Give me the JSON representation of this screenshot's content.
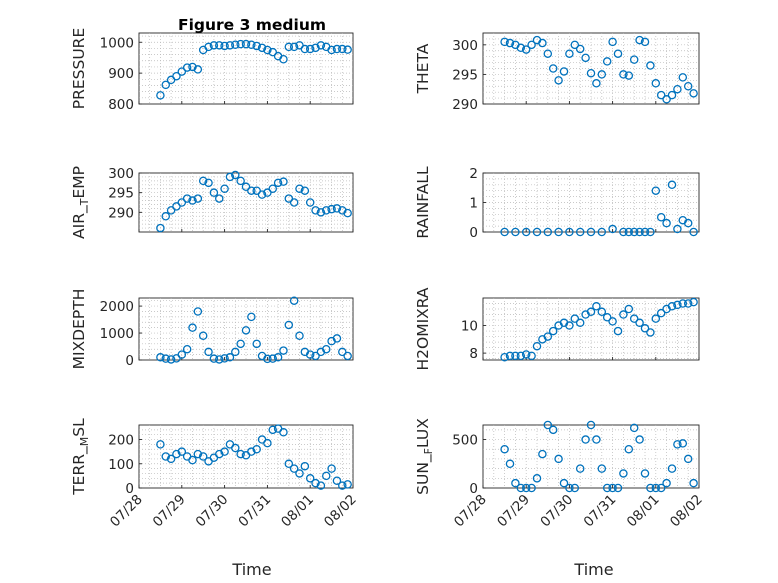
{
  "figure": {
    "title": "Figure 3 medium",
    "x_axis_label": "Time",
    "x_ticks": [
      "07/28",
      "07/29",
      "07/30",
      "07/31",
      "08/01",
      "08/02"
    ],
    "x_range": [
      "07/28",
      "08/02"
    ],
    "marker_color": "#0072BD",
    "grid": "dotted major and minor"
  },
  "chart_data": [
    {
      "type": "scatter",
      "ylabel": "PRESSURE",
      "ylim": [
        800,
        1030
      ],
      "yticks": [
        "800",
        "900",
        "1000"
      ],
      "x": [
        "07/28 12:00",
        "07/28 15:00",
        "07/28 18:00",
        "07/28 21:00",
        "07/29 00:00",
        "07/29 03:00",
        "07/29 06:00",
        "07/29 09:00",
        "07/29 12:00",
        "07/29 15:00",
        "07/29 18:00",
        "07/29 21:00",
        "07/30 00:00",
        "07/30 03:00",
        "07/30 06:00",
        "07/30 09:00",
        "07/30 12:00",
        "07/30 15:00",
        "07/30 18:00",
        "07/30 21:00",
        "07/31 00:00",
        "07/31 03:00",
        "07/31 06:00",
        "07/31 09:00",
        "07/31 12:00",
        "07/31 15:00",
        "07/31 18:00",
        "07/31 21:00",
        "08/01 00:00",
        "08/01 03:00",
        "08/01 06:00",
        "08/01 09:00",
        "08/01 12:00",
        "08/01 15:00",
        "08/01 18:00",
        "08/01 21:00"
      ],
      "y": [
        828,
        862,
        878,
        890,
        905,
        918,
        920,
        912,
        975,
        985,
        990,
        990,
        988,
        990,
        992,
        994,
        994,
        992,
        988,
        982,
        975,
        968,
        955,
        945,
        985,
        985,
        990,
        978,
        978,
        982,
        990,
        985,
        975,
        978,
        978,
        976
      ]
    },
    {
      "type": "scatter",
      "ylabel": "THETA",
      "ylim": [
        290,
        302
      ],
      "yticks": [
        "290",
        "295",
        "300"
      ],
      "x": [
        "07/28 12:00",
        "07/28 15:00",
        "07/28 18:00",
        "07/28 21:00",
        "07/29 00:00",
        "07/29 03:00",
        "07/29 06:00",
        "07/29 09:00",
        "07/29 12:00",
        "07/29 15:00",
        "07/29 18:00",
        "07/29 21:00",
        "07/30 00:00",
        "07/30 03:00",
        "07/30 06:00",
        "07/30 09:00",
        "07/30 12:00",
        "07/30 15:00",
        "07/30 18:00",
        "07/30 21:00",
        "07/31 00:00",
        "07/31 03:00",
        "07/31 06:00",
        "07/31 09:00",
        "07/31 12:00",
        "07/31 15:00",
        "07/31 18:00",
        "07/31 21:00",
        "08/01 00:00",
        "08/01 03:00",
        "08/01 06:00",
        "08/01 09:00",
        "08/01 12:00",
        "08/01 15:00",
        "08/01 18:00",
        "08/01 21:00"
      ],
      "y": [
        300.5,
        300.3,
        300.0,
        299.5,
        299.2,
        300.0,
        300.8,
        300.3,
        298.5,
        296.0,
        294.0,
        295.5,
        298.5,
        300.0,
        299.3,
        297.8,
        295.2,
        293.5,
        295.0,
        297.2,
        300.5,
        298.5,
        295.0,
        294.8,
        297.5,
        300.8,
        300.5,
        296.5,
        293.5,
        291.5,
        290.8,
        291.5,
        292.5,
        294.5,
        293.0,
        291.8
      ]
    },
    {
      "type": "scatter",
      "ylabel": "AIR_TEMP",
      "ylim": [
        285,
        300
      ],
      "yticks": [
        "290",
        "295",
        "300"
      ],
      "x": [
        "07/28 12:00",
        "07/28 15:00",
        "07/28 18:00",
        "07/28 21:00",
        "07/29 00:00",
        "07/29 03:00",
        "07/29 06:00",
        "07/29 09:00",
        "07/29 12:00",
        "07/29 15:00",
        "07/29 18:00",
        "07/29 21:00",
        "07/30 00:00",
        "07/30 03:00",
        "07/30 06:00",
        "07/30 09:00",
        "07/30 12:00",
        "07/30 15:00",
        "07/30 18:00",
        "07/30 21:00",
        "07/31 00:00",
        "07/31 03:00",
        "07/31 06:00",
        "07/31 09:00",
        "07/31 12:00",
        "07/31 15:00",
        "07/31 18:00",
        "07/31 21:00",
        "08/01 00:00",
        "08/01 03:00",
        "08/01 06:00",
        "08/01 09:00",
        "08/01 12:00",
        "08/01 15:00",
        "08/01 18:00",
        "08/01 21:00"
      ],
      "y": [
        286.0,
        289.0,
        290.5,
        291.5,
        292.5,
        293.5,
        293.0,
        293.5,
        298.0,
        297.5,
        295.0,
        293.5,
        296.0,
        299.0,
        299.5,
        298.0,
        296.5,
        295.5,
        295.5,
        294.5,
        295.0,
        296.0,
        297.5,
        297.8,
        293.5,
        292.5,
        296.0,
        295.5,
        292.5,
        290.5,
        290.0,
        290.5,
        290.8,
        291.0,
        290.5,
        289.8
      ]
    },
    {
      "type": "scatter",
      "ylabel": "RAINFALL",
      "ylim": [
        0,
        2
      ],
      "yticks": [
        "0",
        "1",
        "2"
      ],
      "x": [
        "07/28 12:00",
        "07/28 18:00",
        "07/29 00:00",
        "07/29 06:00",
        "07/29 12:00",
        "07/29 18:00",
        "07/30 00:00",
        "07/30 06:00",
        "07/30 12:00",
        "07/30 18:00",
        "07/31 00:00",
        "07/31 06:00",
        "07/31 09:00",
        "07/31 12:00",
        "07/31 15:00",
        "07/31 18:00",
        "07/31 21:00",
        "08/01 00:00",
        "08/01 03:00",
        "08/01 06:00",
        "08/01 09:00",
        "08/01 12:00",
        "08/01 15:00",
        "08/01 18:00",
        "08/01 21:00"
      ],
      "y": [
        0,
        0,
        0,
        0,
        0,
        0,
        0,
        0,
        0,
        0,
        0.1,
        0,
        0,
        0,
        0,
        0,
        0,
        1.4,
        0.5,
        0.3,
        1.6,
        0.1,
        0.4,
        0.3,
        0
      ]
    },
    {
      "type": "scatter",
      "ylabel": "MIXDEPTH",
      "ylim": [
        0,
        2300
      ],
      "yticks": [
        "0",
        "1000",
        "2000"
      ],
      "x": [
        "07/28 12:00",
        "07/28 15:00",
        "07/28 18:00",
        "07/28 21:00",
        "07/29 00:00",
        "07/29 03:00",
        "07/29 06:00",
        "07/29 09:00",
        "07/29 12:00",
        "07/29 15:00",
        "07/29 18:00",
        "07/29 21:00",
        "07/30 00:00",
        "07/30 03:00",
        "07/30 06:00",
        "07/30 09:00",
        "07/30 12:00",
        "07/30 15:00",
        "07/30 18:00",
        "07/30 21:00",
        "07/31 00:00",
        "07/31 03:00",
        "07/31 06:00",
        "07/31 09:00",
        "07/31 12:00",
        "07/31 15:00",
        "07/31 18:00",
        "07/31 21:00",
        "08/01 00:00",
        "08/01 03:00",
        "08/01 06:00",
        "08/01 09:00",
        "08/01 12:00",
        "08/01 15:00",
        "08/01 18:00",
        "08/01 21:00"
      ],
      "y": [
        100,
        50,
        20,
        60,
        200,
        400,
        1200,
        1800,
        900,
        300,
        50,
        20,
        60,
        100,
        300,
        600,
        1100,
        1600,
        600,
        150,
        40,
        50,
        100,
        350,
        1300,
        2200,
        900,
        300,
        200,
        150,
        300,
        400,
        700,
        800,
        300,
        150
      ]
    },
    {
      "type": "scatter",
      "ylabel": "H2OMIXRA",
      "ylim": [
        7.5,
        12
      ],
      "yticks": [
        "8",
        "10"
      ],
      "x": [
        "07/28 12:00",
        "07/28 15:00",
        "07/28 18:00",
        "07/28 21:00",
        "07/29 00:00",
        "07/29 03:00",
        "07/29 06:00",
        "07/29 09:00",
        "07/29 12:00",
        "07/29 15:00",
        "07/29 18:00",
        "07/29 21:00",
        "07/30 00:00",
        "07/30 03:00",
        "07/30 06:00",
        "07/30 09:00",
        "07/30 12:00",
        "07/30 15:00",
        "07/30 18:00",
        "07/30 21:00",
        "07/31 00:00",
        "07/31 03:00",
        "07/31 06:00",
        "07/31 09:00",
        "07/31 12:00",
        "07/31 15:00",
        "07/31 18:00",
        "07/31 21:00",
        "08/01 00:00",
        "08/01 03:00",
        "08/01 06:00",
        "08/01 09:00",
        "08/01 12:00",
        "08/01 15:00",
        "08/01 18:00",
        "08/01 21:00"
      ],
      "y": [
        7.7,
        7.8,
        7.8,
        7.8,
        7.9,
        7.8,
        8.5,
        9.0,
        9.2,
        9.6,
        10.0,
        10.2,
        10.0,
        10.5,
        10.2,
        10.8,
        11.0,
        11.4,
        11.0,
        10.6,
        10.3,
        9.6,
        10.8,
        11.2,
        10.5,
        10.2,
        9.8,
        9.5,
        10.5,
        10.9,
        11.2,
        11.4,
        11.5,
        11.6,
        11.6,
        11.7
      ]
    },
    {
      "type": "scatter",
      "ylabel": "TERR_MSL",
      "ylim": [
        0,
        260
      ],
      "yticks": [
        "0",
        "100",
        "200"
      ],
      "x": [
        "07/28 12:00",
        "07/28 15:00",
        "07/28 18:00",
        "07/28 21:00",
        "07/29 00:00",
        "07/29 03:00",
        "07/29 06:00",
        "07/29 09:00",
        "07/29 12:00",
        "07/29 15:00",
        "07/29 18:00",
        "07/29 21:00",
        "07/30 00:00",
        "07/30 03:00",
        "07/30 06:00",
        "07/30 09:00",
        "07/30 12:00",
        "07/30 15:00",
        "07/30 18:00",
        "07/30 21:00",
        "07/31 00:00",
        "07/31 03:00",
        "07/31 06:00",
        "07/31 09:00",
        "07/31 12:00",
        "07/31 15:00",
        "07/31 18:00",
        "07/31 21:00",
        "08/01 00:00",
        "08/01 03:00",
        "08/01 06:00",
        "08/01 09:00",
        "08/01 12:00",
        "08/01 15:00",
        "08/01 18:00",
        "08/01 21:00"
      ],
      "y": [
        180,
        130,
        120,
        140,
        150,
        130,
        115,
        140,
        130,
        110,
        125,
        140,
        150,
        180,
        165,
        140,
        135,
        150,
        160,
        200,
        185,
        240,
        245,
        230,
        100,
        80,
        60,
        90,
        40,
        20,
        10,
        50,
        80,
        30,
        10,
        15
      ]
    },
    {
      "type": "scatter",
      "ylabel": "SUN_FLUX",
      "ylim": [
        0,
        650
      ],
      "yticks": [
        "0",
        "500"
      ],
      "x": [
        "07/28 12:00",
        "07/28 15:00",
        "07/28 18:00",
        "07/28 21:00",
        "07/29 00:00",
        "07/29 03:00",
        "07/29 06:00",
        "07/29 09:00",
        "07/29 12:00",
        "07/29 15:00",
        "07/29 18:00",
        "07/29 21:00",
        "07/30 00:00",
        "07/30 03:00",
        "07/30 06:00",
        "07/30 09:00",
        "07/30 12:00",
        "07/30 15:00",
        "07/30 18:00",
        "07/30 21:00",
        "07/31 00:00",
        "07/31 03:00",
        "07/31 06:00",
        "07/31 09:00",
        "07/31 12:00",
        "07/31 15:00",
        "07/31 18:00",
        "07/31 21:00",
        "08/01 00:00",
        "08/01 03:00",
        "08/01 06:00",
        "08/01 09:00",
        "08/01 12:00",
        "08/01 15:00",
        "08/01 18:00",
        "08/01 21:00"
      ],
      "y": [
        400,
        250,
        50,
        0,
        0,
        0,
        100,
        350,
        650,
        600,
        300,
        50,
        0,
        0,
        200,
        500,
        650,
        500,
        200,
        0,
        0,
        0,
        150,
        400,
        620,
        500,
        150,
        0,
        0,
        0,
        50,
        200,
        450,
        460,
        300,
        50
      ]
    }
  ]
}
